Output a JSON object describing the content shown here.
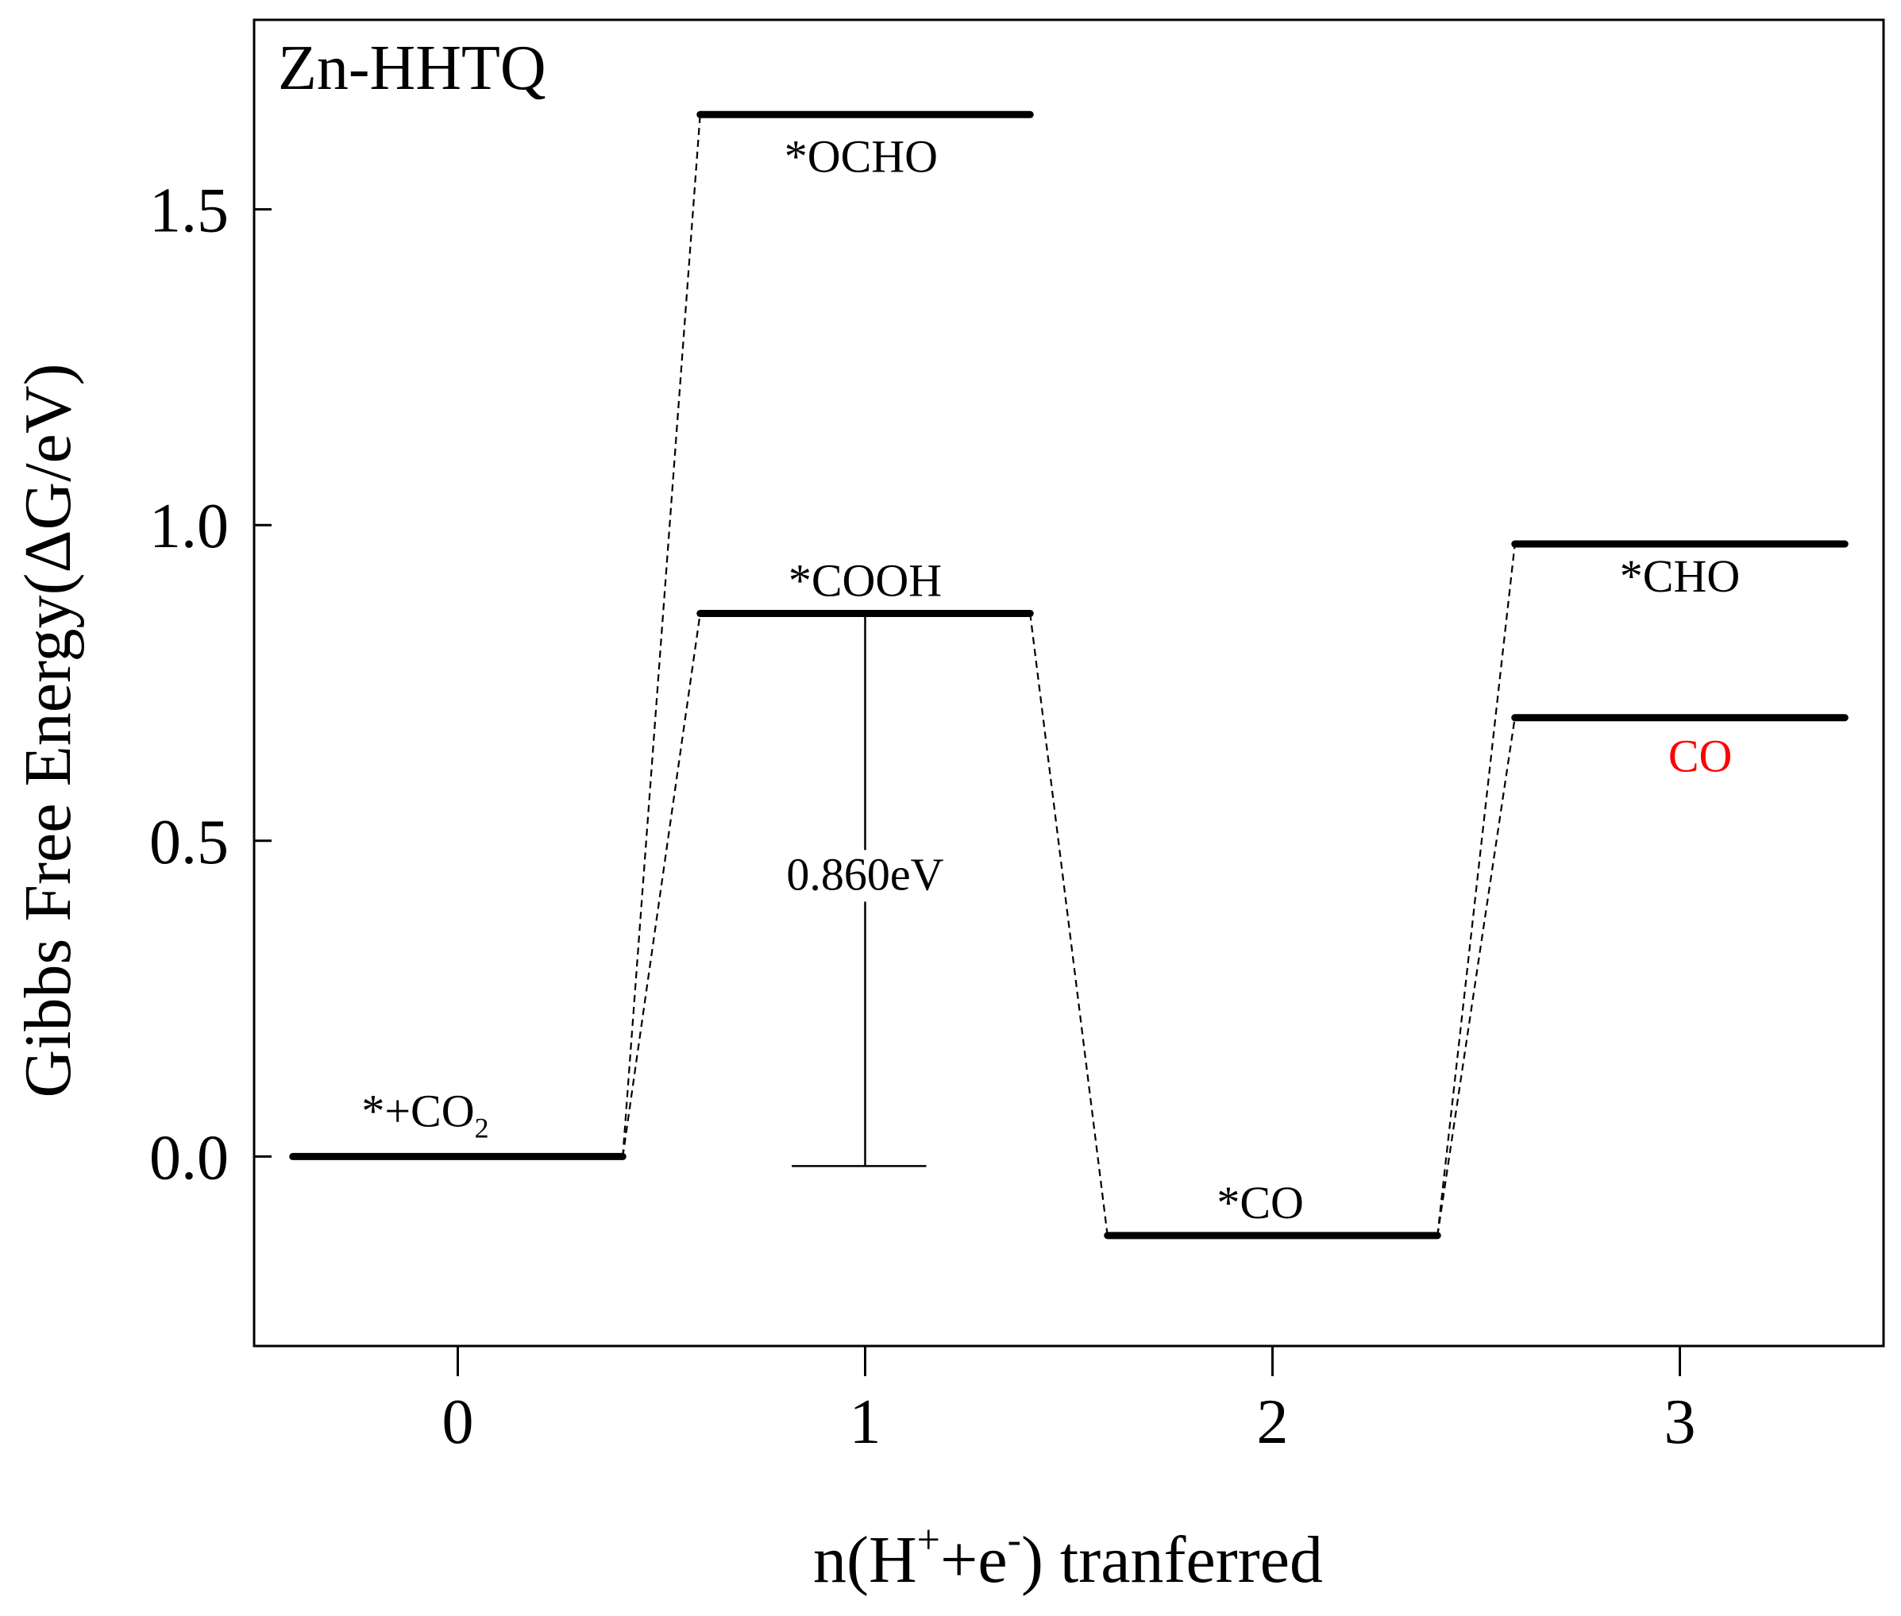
{
  "chart_data": {
    "type": "energy-level-diagram",
    "title": "Zn-HHTQ",
    "xlabel": {
      "base": "n(H",
      "sup1": "+",
      "mid": "+e",
      "sup2": "-",
      "end": ") tranferred"
    },
    "ylabel": "Gibbs Free Energy(ΔG/eV)",
    "xlim": [
      -0.5,
      3.5
    ],
    "ylim": [
      -0.3,
      1.8
    ],
    "x_ticks": [
      {
        "value": 0,
        "label": "0"
      },
      {
        "value": 1,
        "label": "1"
      },
      {
        "value": 2,
        "label": "2"
      },
      {
        "value": 3,
        "label": "3"
      }
    ],
    "y_ticks": [
      {
        "value": 0.0,
        "label": "0.0"
      },
      {
        "value": 0.5,
        "label": "0.5"
      },
      {
        "value": 1.0,
        "label": "1.0"
      },
      {
        "value": 1.5,
        "label": "1.5"
      }
    ],
    "levels": [
      {
        "id": "co2",
        "x": 0,
        "energy": 0.0,
        "label": "*+CO",
        "label_sub": "2",
        "label_color": "#000000"
      },
      {
        "id": "ocho",
        "x": 1,
        "energy": 1.65,
        "label": "*OCHO",
        "label_sub": "",
        "label_color": "#000000"
      },
      {
        "id": "cooh",
        "x": 1,
        "energy": 0.86,
        "label": "*COOH",
        "label_sub": "",
        "label_color": "#000000"
      },
      {
        "id": "co-ads",
        "x": 2,
        "energy": -0.125,
        "label": "*CO",
        "label_sub": "",
        "label_color": "#000000"
      },
      {
        "id": "cho",
        "x": 3,
        "energy": 0.97,
        "label": "*CHO",
        "label_sub": "",
        "label_color": "#000000"
      },
      {
        "id": "co-gas",
        "x": 3,
        "energy": 0.695,
        "label": "CO",
        "label_sub": "",
        "label_color": "#ff0000"
      }
    ],
    "connectors": [
      {
        "from": "co2",
        "to": "ocho"
      },
      {
        "from": "co2",
        "to": "cooh"
      },
      {
        "from": "cooh",
        "to": "co-ads"
      },
      {
        "from": "co-ads",
        "to": "cho"
      },
      {
        "from": "co-ads",
        "to": "co-gas"
      }
    ],
    "barrier": {
      "x": 1,
      "from_energy": -0.015,
      "to_energy": 0.86,
      "label": "0.860eV"
    },
    "grid": false,
    "legend": "none"
  }
}
